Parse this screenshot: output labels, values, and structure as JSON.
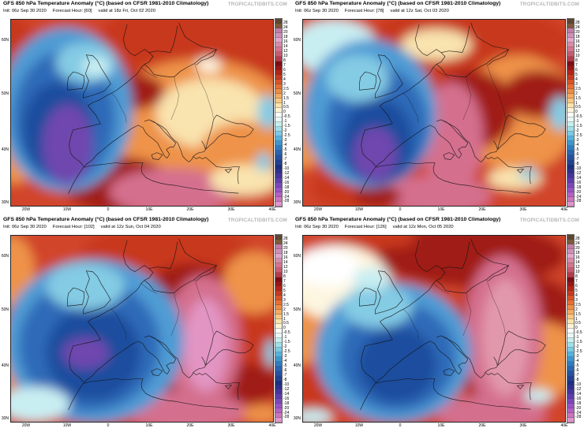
{
  "watermark": "TROPICALTIDBITS.COM",
  "panels": [
    {
      "title": "GFS 850 hPa Temperature Anomaly (°C) (based on CFSR 1981-2010 Climatology)",
      "init": "Init: 06z Sep 30 2020",
      "forecast_hour": "Forecast Hour: [60]",
      "valid": "valid at 18z Fri, Oct 02 2020"
    },
    {
      "title": "GFS 850 hPa Temperature Anomaly (°C) (based on CFSR 1981-2010 Climatology)",
      "init": "Init: 06z Sep 30 2020",
      "forecast_hour": "Forecast Hour: [78]",
      "valid": "valid at 12z Sat, Oct 03 2020"
    },
    {
      "title": "GFS 850 hPa Temperature Anomaly (°C) (based on CFSR 1981-2010 Climatology)",
      "init": "Init: 06z Sep 30 2020",
      "forecast_hour": "Forecast Hour: [102]",
      "valid": "valid at 12z Sun, Oct 04 2020"
    },
    {
      "title": "GFS 850 hPa Temperature Anomaly (°C) (based on CFSR 1981-2010 Climatology)",
      "init": "Init: 06z Sep 30 2020",
      "forecast_hour": "Forecast Hour: [126]",
      "valid": "valid at 12z Mon, Oct 05 2020"
    }
  ],
  "map_axes": {
    "lat_labels": [
      "60N",
      "50N",
      "40N",
      "30N"
    ],
    "lon_labels": [
      "20W",
      "10W",
      "0",
      "10E",
      "20E",
      "30E",
      "40E"
    ]
  },
  "colorbar": {
    "ticks": [
      "28",
      "24",
      "20",
      "18",
      "16",
      "14",
      "12",
      "10",
      "8",
      "7",
      "6",
      "5",
      "4",
      "3",
      "2.5",
      "2",
      "1.5",
      "1",
      "0.5",
      "0",
      "-0.5",
      "-1",
      "-1.5",
      "-2",
      "-2.5",
      "-3",
      "-4",
      "-5",
      "-6",
      "-7",
      "-8",
      "-10",
      "-12",
      "-14",
      "-16",
      "-18",
      "-20",
      "-24",
      "-28"
    ],
    "colors": [
      "#5e4632",
      "#7d5a3c",
      "#c07da8",
      "#cf8fba",
      "#dfa6cc",
      "#d88aa6",
      "#d4748f",
      "#c85a72",
      "#b53a4a",
      "#7e0c14",
      "#9c1414",
      "#b22417",
      "#c63a1f",
      "#d95327",
      "#e56f33",
      "#ef8c43",
      "#f5ab5f",
      "#f9c880",
      "#fce3ab",
      "#fef4d6",
      "#ffffff",
      "#e8f8f6",
      "#c6efef",
      "#9fe0ec",
      "#79cbe6",
      "#55b2dc",
      "#3b97d0",
      "#2f7cc2",
      "#2a64b2",
      "#2551a2",
      "#214092",
      "#1c2f80",
      "#2f2f8e",
      "#46339e",
      "#5f3cae",
      "#7b47bc",
      "#9852c6",
      "#b460c4",
      "#cc74bc",
      "#e094cc"
    ]
  },
  "palette": {
    "base_red": "#d1452a",
    "red": "#c8391f",
    "dark_red": "#a01c17",
    "maroon": "#7e0d10",
    "orange": "#ee9348",
    "light_orange": "#f5b96e",
    "pale_yellow": "#f9e3ae",
    "cream": "#fdf6e0",
    "white": "#ffffff",
    "pale_cyan": "#c9eef2",
    "cyan": "#84cbe4",
    "light_blue": "#4f9bd4",
    "blue": "#2f6ab8",
    "deep_blue": "#1e4d9e",
    "navy": "#1c2f80",
    "purple": "#6f46ae",
    "violet": "#8b4fc0",
    "rose": "#d4708e",
    "light_rose": "#e298ac",
    "pink": "#e294c2",
    "magenta": "#cc6fb6"
  }
}
